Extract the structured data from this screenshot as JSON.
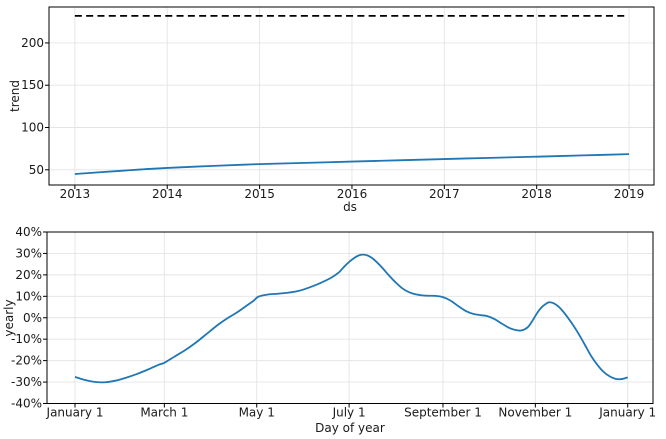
{
  "figure": {
    "background": "#ffffff",
    "colors": {
      "line_blue": "#1f77b4",
      "cap_black": "#000000",
      "grid": "#e4e4e4",
      "spine": "#000000",
      "text": "#1a1a1a"
    }
  },
  "chart_data": [
    {
      "type": "line",
      "title": "",
      "xlabel": "ds",
      "ylabel": "trend",
      "grid": true,
      "legend": "none",
      "xlim": [
        2012.72,
        2019.27
      ],
      "ylim": [
        32,
        242.5
      ],
      "xticks": {
        "pos": [
          2013,
          2014,
          2015,
          2016,
          2017,
          2018,
          2019
        ],
        "labels": [
          "2013",
          "2014",
          "2015",
          "2016",
          "2017",
          "2018",
          "2019"
        ]
      },
      "yticks": {
        "pos": [
          50,
          100,
          150,
          200
        ],
        "labels": [
          "50",
          "100",
          "150",
          "200"
        ]
      },
      "series": [
        {
          "name": "cap",
          "color": "#000000",
          "dash": "7 4.3",
          "width": 1.7,
          "smooth": false,
          "x": [
            2013,
            2018.98
          ],
          "y": [
            232,
            232
          ]
        },
        {
          "name": "trend",
          "color": "#1f77b4",
          "dash": "",
          "width": 1.8,
          "smooth": true,
          "x": [
            2013,
            2013.25,
            2013.5,
            2013.75,
            2014,
            2014.5,
            2015,
            2015.5,
            2016,
            2016.5,
            2017,
            2017.5,
            2018,
            2018.5,
            2019
          ],
          "y": [
            45,
            46.9,
            48.8,
            50.6,
            52.2,
            54.6,
            56.7,
            58.2,
            59.7,
            61.2,
            62.7,
            64.1,
            65.5,
            67,
            68.5
          ]
        }
      ]
    },
    {
      "type": "line",
      "title": "",
      "xlabel": "Day of year",
      "ylabel": "yearly",
      "grid": true,
      "legend": "none",
      "xlim": [
        -18.5,
        381.7
      ],
      "ylim": [
        -40,
        40
      ],
      "xticks": {
        "pos": [
          0,
          59,
          120,
          181,
          243,
          304,
          365
        ],
        "labels": [
          "January 1",
          "March 1",
          "May 1",
          "July 1",
          "September 1",
          "November 1",
          "January 1"
        ]
      },
      "yticks": {
        "pos": [
          40,
          30,
          20,
          10,
          0,
          -10,
          -20,
          -30,
          -40
        ],
        "labels": [
          "40%",
          "30%",
          "20%",
          "10%",
          "0%",
          "-10%",
          "-20%",
          "-30%",
          "-40%"
        ]
      },
      "series": [
        {
          "name": "yearly",
          "color": "#1f77b4",
          "dash": "",
          "width": 1.8,
          "smooth": true,
          "x": [
            0,
            6,
            13,
            20,
            27,
            34,
            41,
            48,
            55,
            59,
            66,
            73,
            80,
            87,
            94,
            100,
            107,
            113,
            118,
            121,
            127,
            134,
            141,
            148,
            155,
            162,
            169,
            174,
            178,
            182,
            186,
            189,
            193,
            197,
            202,
            207,
            211,
            216,
            221,
            226,
            232,
            238,
            243,
            248,
            253,
            258,
            263,
            268,
            272,
            277,
            282,
            287,
            291,
            295,
            299,
            302,
            305,
            308,
            311,
            313,
            316,
            319,
            322,
            325,
            329,
            333,
            337,
            341,
            345,
            349,
            353,
            357,
            361,
            365
          ],
          "y": [
            -27.6,
            -28.9,
            -29.9,
            -30.1,
            -29.3,
            -27.9,
            -26.2,
            -24.2,
            -22,
            -21,
            -18,
            -15,
            -11.5,
            -7.5,
            -3.5,
            -0.5,
            2.5,
            5.5,
            8,
            9.8,
            10.8,
            11.2,
            11.7,
            12.6,
            14.2,
            16.2,
            18.6,
            21,
            24,
            26.6,
            28.6,
            29.4,
            29.1,
            27.4,
            24,
            20,
            17,
            13.8,
            11.8,
            10.8,
            10.3,
            10.2,
            9.6,
            8,
            5.5,
            3.2,
            1.8,
            1.2,
            0.8,
            -0.6,
            -2.8,
            -4.8,
            -5.7,
            -5.9,
            -4.4,
            -1.5,
            2,
            4.8,
            6.5,
            7.2,
            6.8,
            5.4,
            3.2,
            0.5,
            -3.5,
            -8,
            -13,
            -18,
            -22,
            -25.2,
            -27.3,
            -28.5,
            -28.6,
            -27.8
          ]
        }
      ]
    }
  ]
}
